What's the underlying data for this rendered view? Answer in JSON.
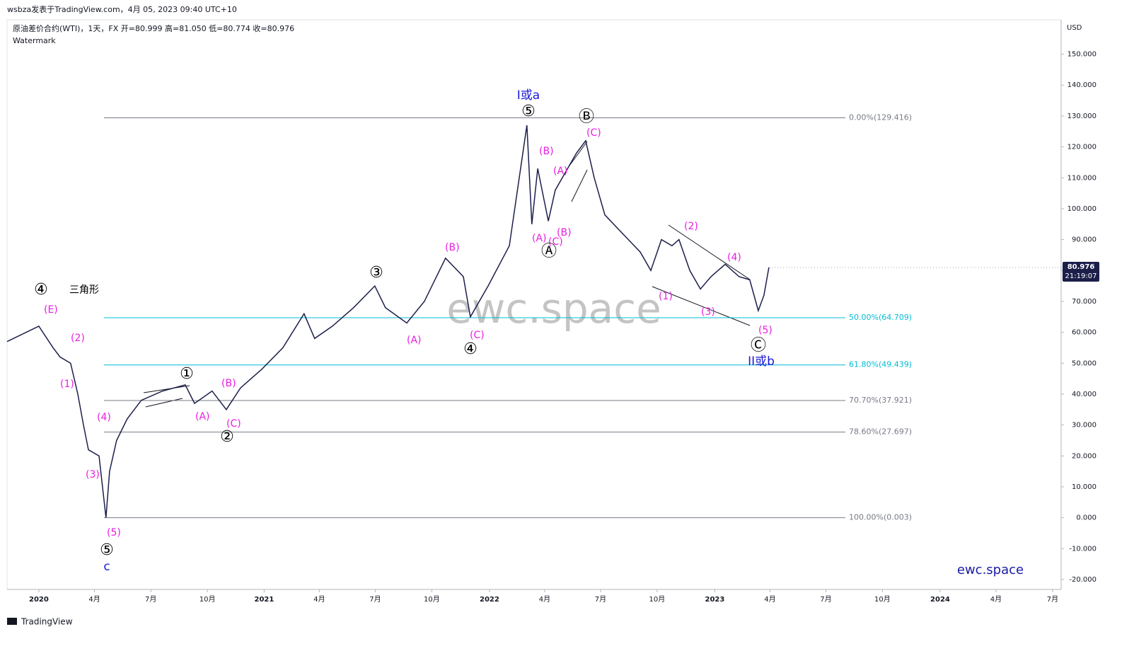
{
  "header": {
    "publisher": "wsbza发表于TradingView.com，4月 05, 2023 09:40 UTC+10",
    "symbol": "原油差价合约(WTI)，1天，FX  开=80.999  高=81.050  低=80.774  收=80.976",
    "indicator": "Watermark",
    "watermark": "ewc.space",
    "brand": "ewc.space",
    "footer": "TradingView"
  },
  "chart_data": {
    "type": "line",
    "currency": "USD",
    "color": "#1c1f4a",
    "grid": false,
    "x": [
      2019.859,
      2020.0,
      2020.063,
      2020.094,
      2020.141,
      2020.173,
      2020.198,
      2020.22,
      2020.267,
      2020.298,
      2020.314,
      2020.345,
      2020.392,
      2020.455,
      2020.549,
      2020.65,
      2020.691,
      2020.769,
      2020.832,
      2020.895,
      2020.989,
      2021.083,
      2021.177,
      2021.224,
      2021.303,
      2021.397,
      2021.491,
      2021.538,
      2021.633,
      2021.711,
      2021.805,
      2021.884,
      2021.915,
      2021.994,
      2022.088,
      2022.166,
      2022.188,
      2022.214,
      2022.261,
      2022.292,
      2022.339,
      2022.386,
      2022.427,
      2022.465,
      2022.512,
      2022.59,
      2022.669,
      2022.716,
      2022.763,
      2022.81,
      2022.841,
      2022.889,
      2022.936,
      2022.983,
      2023.046,
      2023.108,
      2023.155,
      2023.193,
      2023.218,
      2023.24
    ],
    "values": [
      57,
      62,
      55,
      52,
      50,
      40,
      30,
      22,
      20,
      0,
      15,
      25,
      32,
      38,
      41,
      43,
      37,
      41,
      35,
      42,
      48,
      55,
      66,
      58,
      62,
      68,
      75,
      68,
      63,
      70,
      84,
      78,
      65,
      75,
      88,
      127,
      95,
      113,
      96,
      106,
      112,
      118,
      122,
      110,
      98,
      92,
      86,
      80,
      90,
      88,
      90,
      80,
      74,
      78,
      82,
      78,
      77,
      67,
      72,
      81
    ],
    "xlim": [
      2019.859,
      2024.537
    ],
    "xticks": [
      {
        "value": 2020.0,
        "label": "2020"
      },
      {
        "value": 2020.247,
        "label": "4月"
      },
      {
        "value": 2020.497,
        "label": "7月"
      },
      {
        "value": 2020.748,
        "label": "10月"
      },
      {
        "value": 2021.0,
        "label": "2021"
      },
      {
        "value": 2021.245,
        "label": "4月"
      },
      {
        "value": 2021.493,
        "label": "7月"
      },
      {
        "value": 2021.744,
        "label": "10月"
      },
      {
        "value": 2022.0,
        "label": "2022"
      },
      {
        "value": 2022.245,
        "label": "4月"
      },
      {
        "value": 2022.493,
        "label": "7月"
      },
      {
        "value": 2022.744,
        "label": "10月"
      },
      {
        "value": 2023.0,
        "label": "2023"
      },
      {
        "value": 2023.245,
        "label": "4月"
      },
      {
        "value": 2023.493,
        "label": "7月"
      },
      {
        "value": 2023.744,
        "label": "10月"
      },
      {
        "value": 2024.0,
        "label": "2024"
      },
      {
        "value": 2024.248,
        "label": "4月"
      },
      {
        "value": 2024.499,
        "label": "7月"
      }
    ],
    "ylim": [
      -23.211,
      161.124
    ],
    "yticks": [
      {
        "value": 150,
        "label": "150.000"
      },
      {
        "value": 140,
        "label": "140.000"
      },
      {
        "value": 130,
        "label": "130.000"
      },
      {
        "value": 120,
        "label": "120.000"
      },
      {
        "value": 110,
        "label": "110.000"
      },
      {
        "value": 100,
        "label": "100.000"
      },
      {
        "value": 90,
        "label": "90.000"
      },
      {
        "value": 80,
        "label": "80.000"
      },
      {
        "value": 70,
        "label": "70.000"
      },
      {
        "value": 60,
        "label": "60.000"
      },
      {
        "value": 50,
        "label": "50.000"
      },
      {
        "value": 40,
        "label": "40.000"
      },
      {
        "value": 30,
        "label": "30.000"
      },
      {
        "value": 20,
        "label": "20.000"
      },
      {
        "value": 10,
        "label": "10.000"
      },
      {
        "value": 0,
        "label": "0.000"
      },
      {
        "value": -10,
        "label": "-10.000"
      },
      {
        "value": -20,
        "label": "-20.000"
      }
    ],
    "last_price": {
      "value": 80.976,
      "label": "80.976"
    },
    "countdown": "21:19:07",
    "fib_levels": [
      {
        "value": 129.416,
        "label": "0.00%(129.416)",
        "color": "#787b86"
      },
      {
        "value": 64.709,
        "label": "50.00%(64.709)",
        "color": "#00bcd4"
      },
      {
        "value": 49.439,
        "label": "61.80%(49.439)",
        "color": "#00bcd4"
      },
      {
        "value": 37.921,
        "label": "70.70%(37.921)",
        "color": "#787b86"
      },
      {
        "value": 27.697,
        "label": "78.60%(27.697)",
        "color": "#787b86"
      },
      {
        "value": 0.003,
        "label": "100.00%(0.003)",
        "color": "#787b86"
      }
    ],
    "annotations": [
      {
        "text": "④",
        "color": "#000000"
      },
      {
        "text": "三角形",
        "color": "#000000"
      },
      {
        "text": "(E)",
        "color": "#e91ee3"
      },
      {
        "text": "(2)",
        "color": "#e91ee3"
      },
      {
        "text": "(1)",
        "color": "#e91ee3"
      },
      {
        "text": "(4)",
        "color": "#e91ee3"
      },
      {
        "text": "(3)",
        "color": "#e91ee3"
      },
      {
        "text": "(5)",
        "color": "#e91ee3"
      },
      {
        "text": "⑤",
        "color": "#000000"
      },
      {
        "text": "c",
        "color": "#1a1ad6"
      },
      {
        "text": "①",
        "color": "#000000"
      },
      {
        "text": "(A)",
        "color": "#e91ee3"
      },
      {
        "text": "(B)",
        "color": "#e91ee3"
      },
      {
        "text": "(C)",
        "color": "#e91ee3"
      },
      {
        "text": "②",
        "color": "#000000"
      },
      {
        "text": "③",
        "color": "#000000"
      },
      {
        "text": "(A)",
        "color": "#e91ee3"
      },
      {
        "text": "(B)",
        "color": "#e91ee3"
      },
      {
        "text": "(C)",
        "color": "#e91ee3"
      },
      {
        "text": "④",
        "color": "#000000"
      },
      {
        "text": "I或a",
        "color": "#1a1ad6"
      },
      {
        "text": "⑤",
        "color": "#000000"
      },
      {
        "text": "(B)",
        "color": "#e91ee3"
      },
      {
        "text": "(A)",
        "color": "#e91ee3"
      },
      {
        "text": "(A)",
        "color": "#e91ee3"
      },
      {
        "text": "(C)",
        "color": "#e91ee3"
      },
      {
        "text": "(B)",
        "color": "#e91ee3"
      },
      {
        "text": "Ⓐ",
        "color": "#000000"
      },
      {
        "text": "Ⓑ",
        "color": "#000000"
      },
      {
        "text": "(C)",
        "color": "#e91ee3"
      },
      {
        "text": "(2)",
        "color": "#e91ee3"
      },
      {
        "text": "(1)",
        "color": "#e91ee3"
      },
      {
        "text": "(3)",
        "color": "#e91ee3"
      },
      {
        "text": "(4)",
        "color": "#e91ee3"
      },
      {
        "text": "(5)",
        "color": "#e91ee3"
      },
      {
        "text": "Ⓒ",
        "color": "#000000"
      },
      {
        "text": "II或b",
        "color": "#1a1ad6"
      }
    ]
  }
}
